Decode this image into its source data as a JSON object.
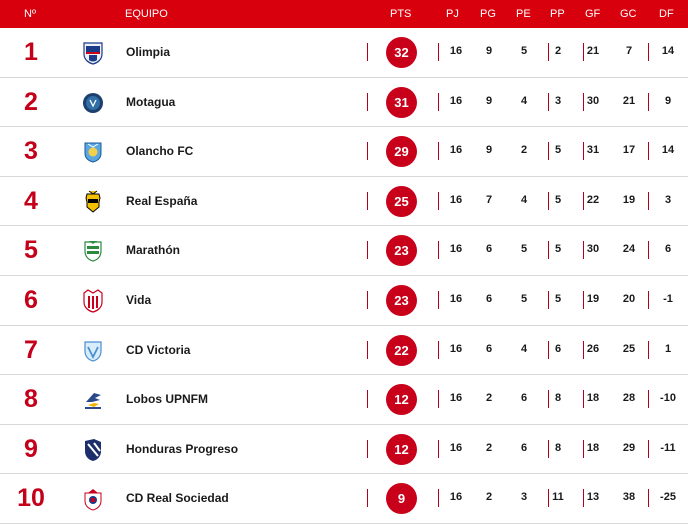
{
  "header": {
    "rank": "Nº",
    "team": "EQUIPO",
    "pts": "PTS",
    "pj": "PJ",
    "pg": "PG",
    "pe": "PE",
    "pp": "PP",
    "gf": "GF",
    "gc": "GC",
    "df": "DF"
  },
  "rows": [
    {
      "rank": "1",
      "team": "Olimpia",
      "logo": "olimpia-crest-icon",
      "pts": "32",
      "pj": "16",
      "pg": "9",
      "pe": "5",
      "pp": "2",
      "gf": "21",
      "gc": "7",
      "df": "14"
    },
    {
      "rank": "2",
      "team": "Motagua",
      "logo": "motagua-crest-icon",
      "pts": "31",
      "pj": "16",
      "pg": "9",
      "pe": "4",
      "pp": "3",
      "gf": "30",
      "gc": "21",
      "df": "9"
    },
    {
      "rank": "3",
      "team": "Olancho FC",
      "logo": "olancho-crest-icon",
      "pts": "29",
      "pj": "16",
      "pg": "9",
      "pe": "2",
      "pp": "5",
      "gf": "31",
      "gc": "17",
      "df": "14"
    },
    {
      "rank": "4",
      "team": "Real España",
      "logo": "real-espana-crest-icon",
      "pts": "25",
      "pj": "16",
      "pg": "7",
      "pe": "4",
      "pp": "5",
      "gf": "22",
      "gc": "19",
      "df": "3"
    },
    {
      "rank": "5",
      "team": "Marathón",
      "logo": "marathon-crest-icon",
      "pts": "23",
      "pj": "16",
      "pg": "6",
      "pe": "5",
      "pp": "5",
      "gf": "30",
      "gc": "24",
      "df": "6"
    },
    {
      "rank": "6",
      "team": "Vida",
      "logo": "vida-crest-icon",
      "pts": "23",
      "pj": "16",
      "pg": "6",
      "pe": "5",
      "pp": "5",
      "gf": "19",
      "gc": "20",
      "df": "-1"
    },
    {
      "rank": "7",
      "team": "CD Victoria",
      "logo": "victoria-crest-icon",
      "pts": "22",
      "pj": "16",
      "pg": "6",
      "pe": "4",
      "pp": "6",
      "gf": "26",
      "gc": "25",
      "df": "1"
    },
    {
      "rank": "8",
      "team": "Lobos UPNFM",
      "logo": "lobos-crest-icon",
      "pts": "12",
      "pj": "16",
      "pg": "2",
      "pe": "6",
      "pp": "8",
      "gf": "18",
      "gc": "28",
      "df": "-10"
    },
    {
      "rank": "9",
      "team": "Honduras Progreso",
      "logo": "honduras-progreso-crest-icon",
      "pts": "12",
      "pj": "16",
      "pg": "2",
      "pe": "6",
      "pp": "8",
      "gf": "18",
      "gc": "29",
      "df": "-11"
    },
    {
      "rank": "10",
      "team": "CD Real Sociedad",
      "logo": "real-sociedad-crest-icon",
      "pts": "9",
      "pj": "16",
      "pg": "2",
      "pe": "3",
      "pp": "11",
      "gf": "13",
      "gc": "38",
      "df": "-25"
    }
  ],
  "colors": {
    "header_bg": "#d9000d",
    "rank_text": "#c4001a",
    "pts_circle": "#c8001a"
  }
}
